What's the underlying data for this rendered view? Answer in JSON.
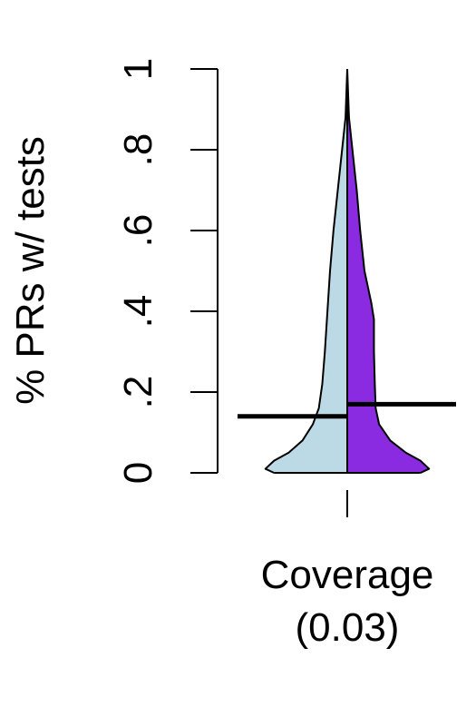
{
  "chart_data": {
    "type": "violin",
    "title": "",
    "ylabel": "% PRs w/ tests",
    "ylim": [
      0,
      1
    ],
    "yticks": [
      {
        "value": 0,
        "label": "0"
      },
      {
        "value": 0.2,
        "label": ".2"
      },
      {
        "value": 0.4,
        "label": ".4"
      },
      {
        "value": 0.6,
        "label": ".6"
      },
      {
        "value": 0.8,
        "label": ".8"
      },
      {
        "value": 1,
        "label": "1"
      }
    ],
    "groups": [
      {
        "label_line1": "Coverage",
        "label_line2": "(0.03)",
        "halves": [
          {
            "side": "left",
            "color": "#bcd9e6",
            "mean": 0.14,
            "density": [
              [
                0.0,
                0.85
              ],
              [
                0.01,
                0.95
              ],
              [
                0.03,
                0.85
              ],
              [
                0.05,
                0.68
              ],
              [
                0.08,
                0.52
              ],
              [
                0.12,
                0.4
              ],
              [
                0.16,
                0.33
              ],
              [
                0.22,
                0.29
              ],
              [
                0.3,
                0.26
              ],
              [
                0.4,
                0.23
              ],
              [
                0.5,
                0.2
              ],
              [
                0.6,
                0.16
              ],
              [
                0.7,
                0.11
              ],
              [
                0.8,
                0.06
              ],
              [
                0.88,
                0.02
              ],
              [
                1.0,
                0.0
              ]
            ]
          },
          {
            "side": "right",
            "color": "#8a2be2",
            "mean": 0.17,
            "density": [
              [
                0.0,
                0.85
              ],
              [
                0.01,
                0.95
              ],
              [
                0.03,
                0.85
              ],
              [
                0.05,
                0.68
              ],
              [
                0.08,
                0.5
              ],
              [
                0.12,
                0.37
              ],
              [
                0.16,
                0.33
              ],
              [
                0.22,
                0.32
              ],
              [
                0.3,
                0.31
              ],
              [
                0.38,
                0.31
              ],
              [
                0.42,
                0.28
              ],
              [
                0.5,
                0.2
              ],
              [
                0.6,
                0.15
              ],
              [
                0.7,
                0.11
              ],
              [
                0.8,
                0.06
              ],
              [
                0.88,
                0.02
              ],
              [
                1.0,
                0.0
              ]
            ]
          }
        ]
      }
    ]
  }
}
